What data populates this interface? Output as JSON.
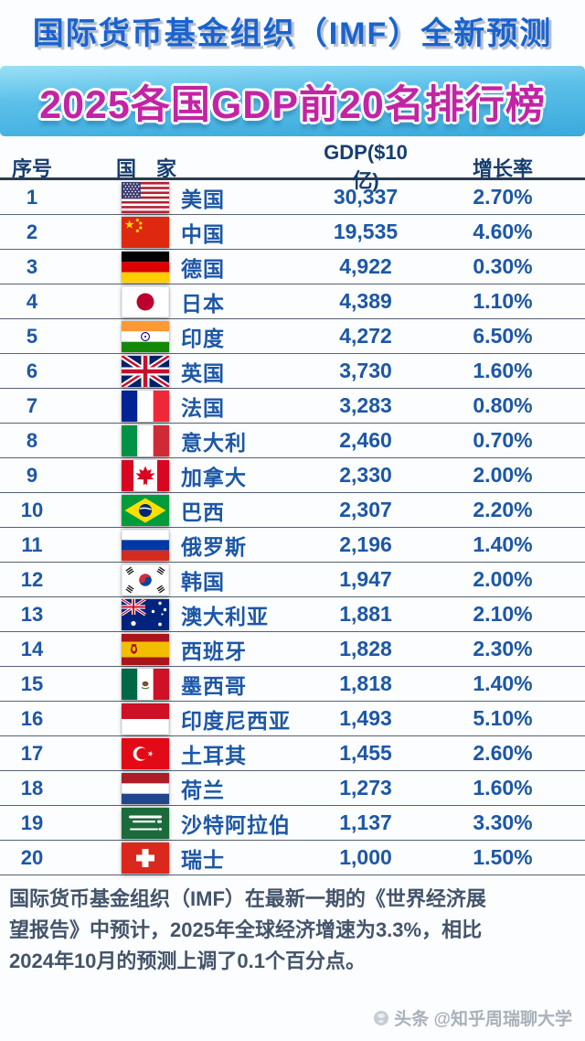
{
  "header": {
    "top_title": "国际货币基金组织（IMF）全新预测",
    "banner_title": "2025各国GDP前20名排行榜"
  },
  "table": {
    "columns": {
      "rank": "序号",
      "country": "国　家",
      "gdp": "GDP($10亿)",
      "growth": "增长率"
    },
    "rows": [
      {
        "rank": "1",
        "flag": "us",
        "country": "美国",
        "gdp": "30,337",
        "growth": "2.70%"
      },
      {
        "rank": "2",
        "flag": "cn",
        "country": "中国",
        "gdp": "19,535",
        "growth": "4.60%"
      },
      {
        "rank": "3",
        "flag": "de",
        "country": "德国",
        "gdp": "4,922",
        "growth": "0.30%"
      },
      {
        "rank": "4",
        "flag": "jp",
        "country": "日本",
        "gdp": "4,389",
        "growth": "1.10%"
      },
      {
        "rank": "5",
        "flag": "in",
        "country": "印度",
        "gdp": "4,272",
        "growth": "6.50%"
      },
      {
        "rank": "6",
        "flag": "gb",
        "country": "英国",
        "gdp": "3,730",
        "growth": "1.60%"
      },
      {
        "rank": "7",
        "flag": "fr",
        "country": "法国",
        "gdp": "3,283",
        "growth": "0.80%"
      },
      {
        "rank": "8",
        "flag": "it",
        "country": "意大利",
        "gdp": "2,460",
        "growth": "0.70%"
      },
      {
        "rank": "9",
        "flag": "ca",
        "country": "加拿大",
        "gdp": "2,330",
        "growth": "2.00%"
      },
      {
        "rank": "10",
        "flag": "br",
        "country": "巴西",
        "gdp": "2,307",
        "growth": "2.20%"
      },
      {
        "rank": "11",
        "flag": "ru",
        "country": "俄罗斯",
        "gdp": "2,196",
        "growth": "1.40%"
      },
      {
        "rank": "12",
        "flag": "kr",
        "country": "韩国",
        "gdp": "1,947",
        "growth": "2.00%"
      },
      {
        "rank": "13",
        "flag": "au",
        "country": "澳大利亚",
        "gdp": "1,881",
        "growth": "2.10%"
      },
      {
        "rank": "14",
        "flag": "es",
        "country": "西班牙",
        "gdp": "1,828",
        "growth": "2.30%"
      },
      {
        "rank": "15",
        "flag": "mx",
        "country": "墨西哥",
        "gdp": "1,818",
        "growth": "1.40%"
      },
      {
        "rank": "16",
        "flag": "id",
        "country": "印度尼西亚",
        "gdp": "1,493",
        "growth": "5.10%"
      },
      {
        "rank": "17",
        "flag": "tr",
        "country": "土耳其",
        "gdp": "1,455",
        "growth": "2.60%"
      },
      {
        "rank": "18",
        "flag": "nl",
        "country": "荷兰",
        "gdp": "1,273",
        "growth": "1.60%"
      },
      {
        "rank": "19",
        "flag": "sa",
        "country": "沙特阿拉伯",
        "gdp": "1,137",
        "growth": "3.30%"
      },
      {
        "rank": "20",
        "flag": "ch",
        "country": "瑞士",
        "gdp": "1,000",
        "growth": "1.50%"
      }
    ]
  },
  "footer": {
    "lines": [
      "国际货币基金组织（IMF）在最新一期的《世界经济展",
      "望报告》中预计，2025年全球经济增速为3.3%，相比",
      "2024年10月的预测上调了0.1个百分点。"
    ]
  },
  "watermark": {
    "text": "头条 @知乎周瑞聊大学"
  },
  "colors": {
    "page_bg": "#fbfdfe",
    "title_blue": "#1a63cf",
    "banner_bg": "#3aa9dc",
    "banner_pink": "#c324a3",
    "header_navy": "#173d70",
    "row_blue": "#1d57a6",
    "footer_slate": "#44546a",
    "watermark_gray": "#a9b1ba"
  },
  "chart_data": {
    "type": "table",
    "title": "2025各国GDP前20名排行榜",
    "subtitle": "国际货币基金组织（IMF）全新预测",
    "columns": [
      "序号",
      "国家",
      "GDP($10亿)",
      "增长率"
    ],
    "countries": [
      "美国",
      "中国",
      "德国",
      "日本",
      "印度",
      "英国",
      "法国",
      "意大利",
      "加拿大",
      "巴西",
      "俄罗斯",
      "韩国",
      "澳大利亚",
      "西班牙",
      "墨西哥",
      "印度尼西亚",
      "土耳其",
      "荷兰",
      "沙特阿拉伯",
      "瑞士"
    ],
    "gdp_billions_usd": [
      30337,
      19535,
      4922,
      4389,
      4272,
      3730,
      3283,
      2460,
      2330,
      2307,
      2196,
      1947,
      1881,
      1828,
      1818,
      1493,
      1455,
      1273,
      1137,
      1000
    ],
    "growth_rate_pct": [
      2.7,
      4.6,
      0.3,
      1.1,
      6.5,
      1.6,
      0.8,
      0.7,
      2.0,
      2.2,
      1.4,
      2.0,
      2.1,
      2.3,
      1.4,
      5.1,
      2.6,
      1.6,
      3.3,
      1.5
    ],
    "note": "IMF《世界经济展望报告》预计2025年全球经济增速为3.3%，相比2024年10月的预测上调了0.1个百分点"
  }
}
